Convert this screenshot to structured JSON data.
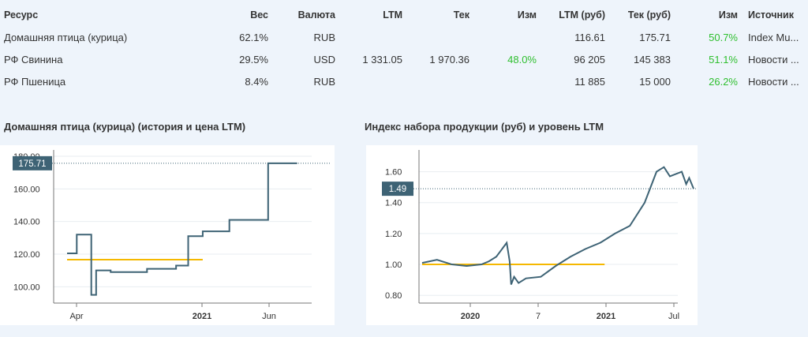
{
  "table": {
    "headers": [
      "Ресурс",
      "Вес",
      "Валюта",
      "LTM",
      "Тек",
      "Изм",
      "LTM (руб)",
      "Тек (руб)",
      "Изм",
      "Источник"
    ],
    "rows": [
      {
        "resource": "Домашняя птица (курица)",
        "weight": "62.1%",
        "currency": "RUB",
        "ltm": "",
        "cur": "",
        "chg": "",
        "ltm_rub": "116.61",
        "cur_rub": "175.71",
        "chg_rub": "50.7%",
        "source": "Index Mu..."
      },
      {
        "resource": "РФ Свинина",
        "weight": "29.5%",
        "currency": "USD",
        "ltm": "1 331.05",
        "cur": "1 970.36",
        "chg": "48.0%",
        "ltm_rub": "96 205",
        "cur_rub": "145 383",
        "chg_rub": "51.1%",
        "source": "Новости ..."
      },
      {
        "resource": "РФ Пшеница",
        "weight": "8.4%",
        "currency": "RUB",
        "ltm": "",
        "cur": "",
        "chg": "",
        "ltm_rub": "11 885",
        "cur_rub": "15 000",
        "chg_rub": "26.2%",
        "source": "Новости ..."
      }
    ]
  },
  "chart1": {
    "title": "Домашняя птица (курица) (история и цена LTM)",
    "current_label": "175.71",
    "colors": {
      "line": "#3e6375",
      "ltm": "#f5b800",
      "badge": "#3e6375"
    },
    "chart_data": {
      "type": "line",
      "title": "Домашняя птица (курица) (история и цена LTM)",
      "ylim": [
        90,
        180
      ],
      "yticks": [
        "100.00",
        "120.00",
        "140.00",
        "160.00",
        "180.00"
      ],
      "xticks": [
        "Apr",
        "2021",
        "Jun"
      ],
      "x_months": [
        0,
        0.4,
        0.6,
        1.0,
        1.2,
        1.8,
        2.3,
        3.3,
        4.5,
        5.0,
        5.6,
        6.0,
        6.2,
        6.7,
        7.5,
        8.3,
        8.6,
        9.5
      ],
      "y_values": [
        120.5,
        132,
        132,
        95,
        110,
        109,
        109,
        111,
        113,
        131,
        134,
        134,
        134,
        141,
        141,
        175.71,
        175.71,
        175.71
      ],
      "ltm": 116.61,
      "current": 175.71
    }
  },
  "chart2": {
    "title": "Индекс набора продукции (руб) и уровень LTM",
    "current_label": "1.49",
    "colors": {
      "line": "#3e6375",
      "ltm": "#f5b800",
      "badge": "#3e6375"
    },
    "chart_data": {
      "type": "line",
      "title": "Индекс набора продукции (руб) и уровень LTM",
      "ylim": [
        0.75,
        1.7
      ],
      "yticks": [
        "0.80",
        "1.00",
        "1.20",
        "1.40",
        "1.60"
      ],
      "xticks": [
        "2020",
        "7",
        "2021",
        "Jul"
      ],
      "x_months": [
        0,
        1,
        2,
        3,
        4,
        4.5,
        5,
        5.7,
        5.9,
        6.0,
        6.2,
        6.5,
        7,
        8,
        9,
        10,
        11,
        12,
        13,
        14,
        15,
        15.8,
        16.3,
        16.7,
        17.5,
        17.8,
        18,
        18.3
      ],
      "y_values": [
        1.01,
        1.03,
        1.0,
        0.99,
        1.0,
        1.02,
        1.05,
        1.14,
        1.02,
        0.87,
        0.92,
        0.88,
        0.91,
        0.92,
        0.99,
        1.05,
        1.1,
        1.14,
        1.2,
        1.25,
        1.4,
        1.6,
        1.63,
        1.57,
        1.6,
        1.52,
        1.56,
        1.49
      ],
      "ltm": 1.0,
      "current": 1.49
    }
  }
}
